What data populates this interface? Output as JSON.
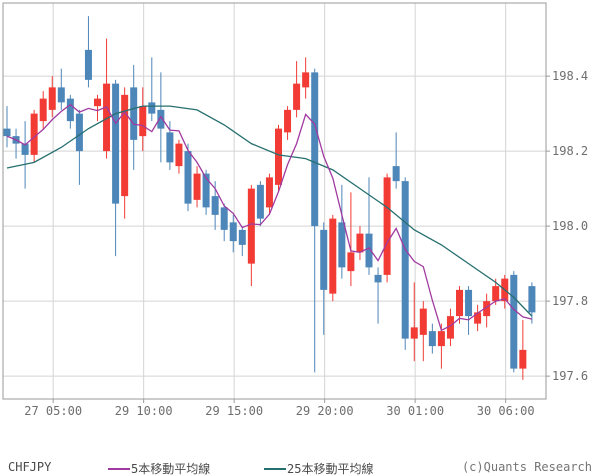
{
  "chart_data": {
    "type": "candlestick",
    "title": "",
    "symbol": "CHFJPY",
    "bar_interval": "30min",
    "up_color": "#f23b35",
    "down_color": "#4d86b8",
    "grid": true,
    "legend_position": "bottom",
    "ylim": [
      197.539,
      198.595
    ],
    "y_ticks": [
      198.4,
      198.2,
      198.0,
      197.8,
      197.6
    ],
    "x_ticks": [
      "27 05:00",
      "29 10:00",
      "29 15:00",
      "29 20:00",
      "30 01:00",
      "30 06:00"
    ],
    "x_tick_bar_positions": [
      5.1,
      15.1,
      25.1,
      35.1,
      45.1,
      55.1
    ],
    "candles_ohlc": [
      [
        198.26,
        198.32,
        198.21,
        198.24
      ],
      [
        198.24,
        198.26,
        198.18,
        198.22
      ],
      [
        198.22,
        198.28,
        198.1,
        198.19
      ],
      [
        198.19,
        198.31,
        198.17,
        198.3
      ],
      [
        198.28,
        198.36,
        198.26,
        198.34
      ],
      [
        198.31,
        198.4,
        198.29,
        198.37
      ],
      [
        198.37,
        198.42,
        198.31,
        198.33
      ],
      [
        198.34,
        198.35,
        198.26,
        198.28
      ],
      [
        198.3,
        198.31,
        198.11,
        198.2
      ],
      [
        198.47,
        198.56,
        198.37,
        198.39
      ],
      [
        198.32,
        198.35,
        198.28,
        198.34
      ],
      [
        198.2,
        198.5,
        198.18,
        198.38
      ],
      [
        198.38,
        198.39,
        197.92,
        198.06
      ],
      [
        198.08,
        198.37,
        198.02,
        198.35
      ],
      [
        198.37,
        198.43,
        198.15,
        198.23
      ],
      [
        198.24,
        198.37,
        198.2,
        198.32
      ],
      [
        198.33,
        198.45,
        198.28,
        198.3
      ],
      [
        198.31,
        198.41,
        198.17,
        198.26
      ],
      [
        198.25,
        198.28,
        198.15,
        198.17
      ],
      [
        198.16,
        198.23,
        198.14,
        198.22
      ],
      [
        198.2,
        198.22,
        198.04,
        198.06
      ],
      [
        198.07,
        198.16,
        198.05,
        198.14
      ],
      [
        198.14,
        198.15,
        198.03,
        198.05
      ],
      [
        198.08,
        198.12,
        197.99,
        198.03
      ],
      [
        198.05,
        198.06,
        197.96,
        197.99
      ],
      [
        198.01,
        198.03,
        197.93,
        197.96
      ],
      [
        197.99,
        198.0,
        197.92,
        197.95
      ],
      [
        197.9,
        198.11,
        197.84,
        198.1
      ],
      [
        198.11,
        198.12,
        198.0,
        198.02
      ],
      [
        198.05,
        198.14,
        198.03,
        198.13
      ],
      [
        198.11,
        198.27,
        198.09,
        198.26
      ],
      [
        198.25,
        198.32,
        198.23,
        198.31
      ],
      [
        198.31,
        198.44,
        198.29,
        198.38
      ],
      [
        198.37,
        198.45,
        198.34,
        198.41
      ],
      [
        198.41,
        198.42,
        197.61,
        198.0
      ],
      [
        197.99,
        198.01,
        197.71,
        197.83
      ],
      [
        197.82,
        198.03,
        197.8,
        198.02
      ],
      [
        198.01,
        198.11,
        197.86,
        197.89
      ],
      [
        197.88,
        198.09,
        197.84,
        197.93
      ],
      [
        197.93,
        198.0,
        197.91,
        197.98
      ],
      [
        197.98,
        198.13,
        197.87,
        197.89
      ],
      [
        197.87,
        197.89,
        197.74,
        197.85
      ],
      [
        197.87,
        198.14,
        197.85,
        198.13
      ],
      [
        198.16,
        198.25,
        198.1,
        198.12
      ],
      [
        198.12,
        198.13,
        197.67,
        197.7
      ],
      [
        197.7,
        197.85,
        197.64,
        197.73
      ],
      [
        197.71,
        197.8,
        197.64,
        197.78
      ],
      [
        197.72,
        197.74,
        197.66,
        197.68
      ],
      [
        197.68,
        197.74,
        197.62,
        197.72
      ],
      [
        197.7,
        197.78,
        197.68,
        197.76
      ],
      [
        197.76,
        197.84,
        197.74,
        197.83
      ],
      [
        197.83,
        197.84,
        197.71,
        197.76
      ],
      [
        197.74,
        197.79,
        197.72,
        197.77
      ],
      [
        197.76,
        197.82,
        197.73,
        197.8
      ],
      [
        197.8,
        197.86,
        197.79,
        197.84
      ],
      [
        197.8,
        197.87,
        197.78,
        197.86
      ],
      [
        197.87,
        197.88,
        197.61,
        197.62
      ],
      [
        197.62,
        197.75,
        197.59,
        197.67
      ],
      [
        197.84,
        197.85,
        197.74,
        197.77
      ]
    ],
    "series": [
      {
        "name": "5本移動平均線",
        "type": "moving_average",
        "period": 5,
        "color": "#a03aa0",
        "computed_from": "closes"
      },
      {
        "name": "25本移動平均線",
        "type": "moving_average",
        "period": 25,
        "color": "#266f6f",
        "points": [
          [
            0,
            198.155
          ],
          [
            3,
            198.17
          ],
          [
            6,
            198.21
          ],
          [
            9,
            198.26
          ],
          [
            12,
            198.3
          ],
          [
            15,
            198.32
          ],
          [
            18,
            198.32
          ],
          [
            21,
            198.31
          ],
          [
            24,
            198.27
          ],
          [
            27,
            198.22
          ],
          [
            30,
            198.19
          ],
          [
            33,
            198.18
          ],
          [
            36,
            198.15
          ],
          [
            39,
            198.1
          ],
          [
            42,
            198.05
          ],
          [
            45,
            197.99
          ],
          [
            48,
            197.95
          ],
          [
            51,
            197.9
          ],
          [
            54,
            197.85
          ],
          [
            56,
            197.81
          ],
          [
            58,
            197.76
          ]
        ]
      }
    ]
  },
  "axis": {
    "text_color": "#6e6e6e",
    "grid_color": "#d4d4d4",
    "border_color": "#9a9a9a"
  },
  "legend": {
    "symbol": "CHFJPY",
    "ma5_label": "5本移動平均線",
    "ma25_label": "25本移動平均線",
    "ma5_color": "#a03aa0",
    "ma25_color": "#266f6f",
    "copyright": "(c)Quants Research"
  }
}
